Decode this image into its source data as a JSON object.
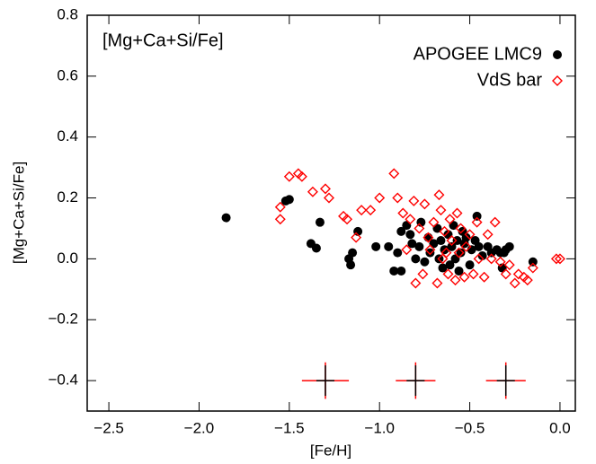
{
  "chart_data": {
    "type": "scatter",
    "annotation": "[Mg+Ca+Si/Fe]",
    "x_label": "[Fe/H]",
    "y_label": "[Mg+Ca+Si/Fe]",
    "xlim": [
      -2.62,
      0.085
    ],
    "ylim": [
      -0.5,
      0.8
    ],
    "xticks": [
      {
        "value": -2.5,
        "label": "−2.5"
      },
      {
        "value": -2.0,
        "label": "−2.0"
      },
      {
        "value": -1.5,
        "label": "−1.5"
      },
      {
        "value": -1.0,
        "label": "−1.0"
      },
      {
        "value": -0.5,
        "label": "−0.5"
      },
      {
        "value": 0,
        "label": "0.0"
      }
    ],
    "yticks": [
      {
        "value": -0.4,
        "label": "−0.4"
      },
      {
        "value": -0.2,
        "label": "−0.2"
      },
      {
        "value": 0,
        "label": "0.0"
      },
      0.2,
      0.4,
      0.6,
      0.8
    ],
    "legend": "upper right",
    "series": [
      {
        "name": "APOGEE LMC9",
        "color": "#000000",
        "marker": "circle",
        "x": [
          -1.85,
          -1.52,
          -1.5,
          -1.38,
          -1.35,
          -1.33,
          -1.17,
          -1.16,
          -1.15,
          -1.12,
          -1.02,
          -0.95,
          -0.92,
          -0.9,
          -0.88,
          -0.88,
          -0.85,
          -0.83,
          -0.82,
          -0.8,
          -0.78,
          -0.77,
          -0.75,
          -0.73,
          -0.72,
          -0.7,
          -0.68,
          -0.67,
          -0.66,
          -0.65,
          -0.64,
          -0.62,
          -0.61,
          -0.6,
          -0.59,
          -0.58,
          -0.57,
          -0.56,
          -0.55,
          -0.54,
          -0.53,
          -0.52,
          -0.5,
          -0.49,
          -0.47,
          -0.46,
          -0.45,
          -0.43,
          -0.4,
          -0.38,
          -0.35,
          -0.33,
          -0.32,
          -0.3,
          -0.28,
          -0.15,
          -0.31
        ],
        "y": [
          0.135,
          0.19,
          0.195,
          0.05,
          0.035,
          0.12,
          0.0,
          -0.02,
          0.02,
          0.09,
          0.04,
          0.04,
          -0.04,
          0.02,
          -0.04,
          0.09,
          0.11,
          0.08,
          0.05,
          0.0,
          0.04,
          0.12,
          -0.01,
          0.07,
          0.02,
          0.05,
          0.1,
          0.0,
          0.06,
          -0.03,
          0.03,
          0.08,
          -0.02,
          0.04,
          0.11,
          0.0,
          0.06,
          -0.04,
          0.02,
          0.09,
          0.05,
          0.07,
          -0.02,
          0.03,
          0.06,
          0.14,
          0.04,
          0.01,
          0.04,
          0.02,
          0.03,
          0.02,
          -0.03,
          0.03,
          0.04,
          -0.01,
          0.02
        ]
      },
      {
        "name": "VdS bar",
        "color": "#ff0000",
        "marker": "diamond",
        "x": [
          -1.55,
          -1.55,
          -1.5,
          -1.45,
          -1.43,
          -1.37,
          -1.3,
          -1.28,
          -1.2,
          -1.18,
          -1.13,
          -1.1,
          -1.05,
          -1.0,
          -0.92,
          -0.9,
          -0.87,
          -0.85,
          -0.83,
          -0.81,
          -0.8,
          -0.78,
          -0.76,
          -0.75,
          -0.73,
          -0.72,
          -0.7,
          -0.68,
          -0.67,
          -0.66,
          -0.65,
          -0.64,
          -0.62,
          -0.61,
          -0.6,
          -0.58,
          -0.57,
          -0.56,
          -0.55,
          -0.53,
          -0.52,
          -0.5,
          -0.48,
          -0.46,
          -0.45,
          -0.42,
          -0.4,
          -0.38,
          -0.36,
          -0.33,
          -0.3,
          -0.28,
          -0.25,
          -0.23,
          -0.2,
          -0.18,
          -0.15,
          0,
          -0.02,
          -0.63
        ],
        "y": [
          0.13,
          0.17,
          0.27,
          0.28,
          0.27,
          0.22,
          0.23,
          0.2,
          0.14,
          0.13,
          0.07,
          0.16,
          0.16,
          0.2,
          0.28,
          0.2,
          0.15,
          0.03,
          0.13,
          0.19,
          -0.08,
          0.1,
          -0.05,
          0.18,
          0.07,
          0.03,
          0.12,
          -0.08,
          0.21,
          0.16,
          0.0,
          0.09,
          -0.05,
          0.13,
          0.06,
          -0.07,
          0.15,
          0.02,
          0.1,
          -0.06,
          0.04,
          0.08,
          -0.05,
          0.12,
          0.0,
          -0.06,
          0.08,
          0.0,
          0.12,
          -0.01,
          -0.05,
          -0.02,
          -0.08,
          -0.05,
          -0.06,
          -0.07,
          -0.03,
          0.0,
          0.0,
          0.02
        ]
      }
    ],
    "error_bars": {
      "x": [
        -1.3,
        -0.8,
        -0.3
      ],
      "y": [
        -0.4,
        -0.4,
        -0.4
      ],
      "series": [
        {
          "color": "#ff0000",
          "xerr": [
            0.13,
            0.11,
            0.11
          ],
          "yerr": [
            0.06,
            0.06,
            0.06
          ]
        },
        {
          "color": "#000000",
          "xerr": [
            0.05,
            0.05,
            0.05
          ],
          "yerr": [
            0.05,
            0.05,
            0.05
          ]
        }
      ]
    }
  }
}
